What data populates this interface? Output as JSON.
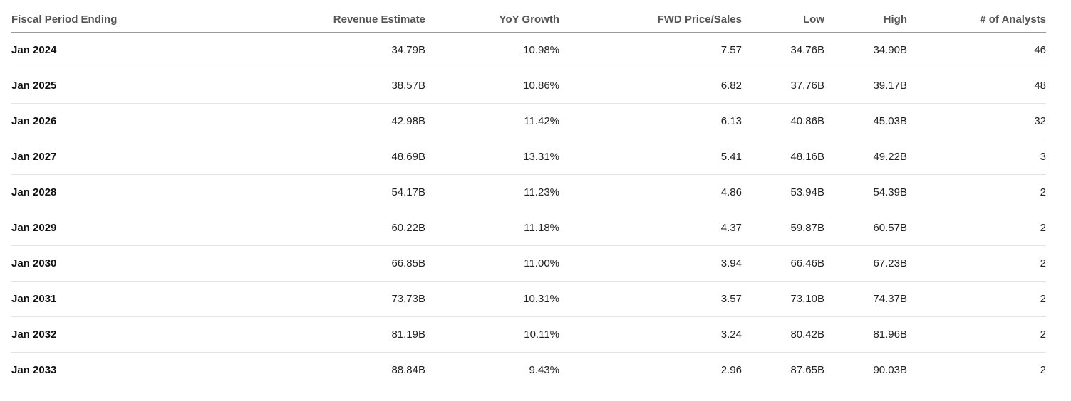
{
  "table": {
    "headers": [
      "Fiscal Period Ending",
      "Revenue Estimate",
      "YoY Growth",
      "FWD Price/Sales",
      "Low",
      "High",
      "# of Analysts"
    ],
    "rows": [
      [
        "Jan 2024",
        "34.79B",
        "10.98%",
        "7.57",
        "34.76B",
        "34.90B",
        "46"
      ],
      [
        "Jan 2025",
        "38.57B",
        "10.86%",
        "6.82",
        "37.76B",
        "39.17B",
        "48"
      ],
      [
        "Jan 2026",
        "42.98B",
        "11.42%",
        "6.13",
        "40.86B",
        "45.03B",
        "32"
      ],
      [
        "Jan 2027",
        "48.69B",
        "13.31%",
        "5.41",
        "48.16B",
        "49.22B",
        "3"
      ],
      [
        "Jan 2028",
        "54.17B",
        "11.23%",
        "4.86",
        "53.94B",
        "54.39B",
        "2"
      ],
      [
        "Jan 2029",
        "60.22B",
        "11.18%",
        "4.37",
        "59.87B",
        "60.57B",
        "2"
      ],
      [
        "Jan 2030",
        "66.85B",
        "11.00%",
        "3.94",
        "66.46B",
        "67.23B",
        "2"
      ],
      [
        "Jan 2031",
        "73.73B",
        "10.31%",
        "3.57",
        "73.10B",
        "74.37B",
        "2"
      ],
      [
        "Jan 2032",
        "81.19B",
        "10.11%",
        "3.24",
        "80.42B",
        "81.96B",
        "2"
      ],
      [
        "Jan 2033",
        "88.84B",
        "9.43%",
        "2.96",
        "87.65B",
        "90.03B",
        "2"
      ]
    ]
  },
  "colors": {
    "header_text": "#555555",
    "body_text": "#222222",
    "header_rule": "#9a9a9a",
    "row_rule": "#e3e3e3",
    "background": "#ffffff"
  }
}
